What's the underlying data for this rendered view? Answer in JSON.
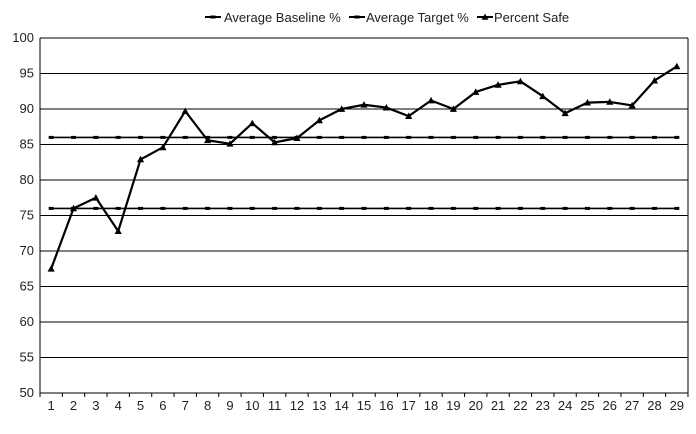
{
  "chart_data": {
    "type": "line",
    "x": [
      1,
      2,
      3,
      4,
      5,
      6,
      7,
      8,
      9,
      10,
      11,
      12,
      13,
      14,
      15,
      16,
      17,
      18,
      19,
      20,
      21,
      22,
      23,
      24,
      25,
      26,
      27,
      28,
      29
    ],
    "ylim": [
      50,
      100
    ],
    "yticks": [
      50,
      55,
      60,
      65,
      70,
      75,
      80,
      85,
      90,
      95,
      100
    ],
    "grid": "horizontal",
    "legend_position": "top",
    "series": [
      {
        "name": "Average Baseline %",
        "marker": "dash",
        "values": [
          76,
          76,
          76,
          76,
          76,
          76,
          76,
          76,
          76,
          76,
          76,
          76,
          76,
          76,
          76,
          76,
          76,
          76,
          76,
          76,
          76,
          76,
          76,
          76,
          76,
          76,
          76,
          76,
          76
        ]
      },
      {
        "name": "Average Target %",
        "marker": "dash",
        "values": [
          86,
          86,
          86,
          86,
          86,
          86,
          86,
          86,
          86,
          86,
          86,
          86,
          86,
          86,
          86,
          86,
          86,
          86,
          86,
          86,
          86,
          86,
          86,
          86,
          86,
          86,
          86,
          86,
          86
        ]
      },
      {
        "name": "Percent Safe",
        "marker": "triangle",
        "values": [
          67.5,
          76,
          77.5,
          72.8,
          82.9,
          84.6,
          89.7,
          85.6,
          85.1,
          88,
          85.3,
          85.9,
          88.4,
          90,
          90.6,
          90.2,
          89,
          91.2,
          90,
          92.4,
          93.4,
          93.9,
          91.8,
          89.4,
          90.9,
          91,
          90.5,
          94,
          96
        ]
      }
    ]
  }
}
